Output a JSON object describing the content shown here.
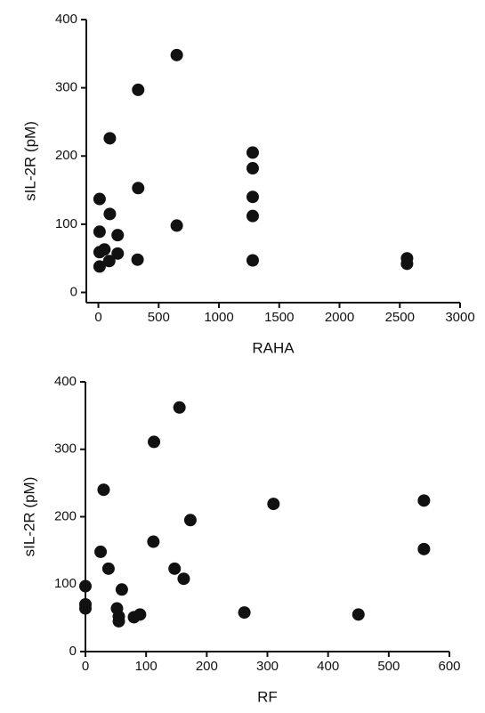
{
  "chart_data": [
    {
      "type": "scatter",
      "xlabel": "RAHA",
      "ylabel": "sIL-2R (pM)",
      "color": "#111111",
      "xlim": [
        -100,
        3000
      ],
      "ylim": [
        -15,
        400
      ],
      "xticks": [
        0,
        500,
        1000,
        1500,
        2000,
        2500,
        3000
      ],
      "yticks": [
        0,
        100,
        200,
        300,
        400
      ],
      "x": [
        10,
        10,
        10,
        10,
        50,
        90,
        95,
        95,
        160,
        160,
        330,
        330,
        325,
        650,
        650,
        1280,
        1280,
        1280,
        1280,
        1280,
        2560,
        2560
      ],
      "values": [
        137,
        89,
        59,
        38,
        63,
        46,
        115,
        226,
        84,
        57,
        297,
        153,
        48,
        348,
        98,
        205,
        182,
        140,
        112,
        47,
        50,
        42
      ]
    },
    {
      "type": "scatter",
      "xlabel": "RF",
      "ylabel": "sIL-2R (pM)",
      "color": "#111111",
      "xlim": [
        0,
        600
      ],
      "ylim": [
        0,
        400
      ],
      "xticks": [
        0,
        100,
        200,
        300,
        400,
        500,
        600
      ],
      "yticks": [
        0,
        100,
        200,
        300,
        400
      ],
      "x": [
        0,
        0,
        0,
        25,
        30,
        38,
        52,
        55,
        55,
        60,
        80,
        90,
        112,
        113,
        147,
        155,
        162,
        173,
        262,
        310,
        450,
        558,
        558
      ],
      "values": [
        97,
        70,
        64,
        148,
        240,
        123,
        64,
        52,
        45,
        92,
        51,
        55,
        163,
        311,
        123,
        362,
        108,
        195,
        58,
        219,
        55,
        224,
        152
      ]
    }
  ]
}
